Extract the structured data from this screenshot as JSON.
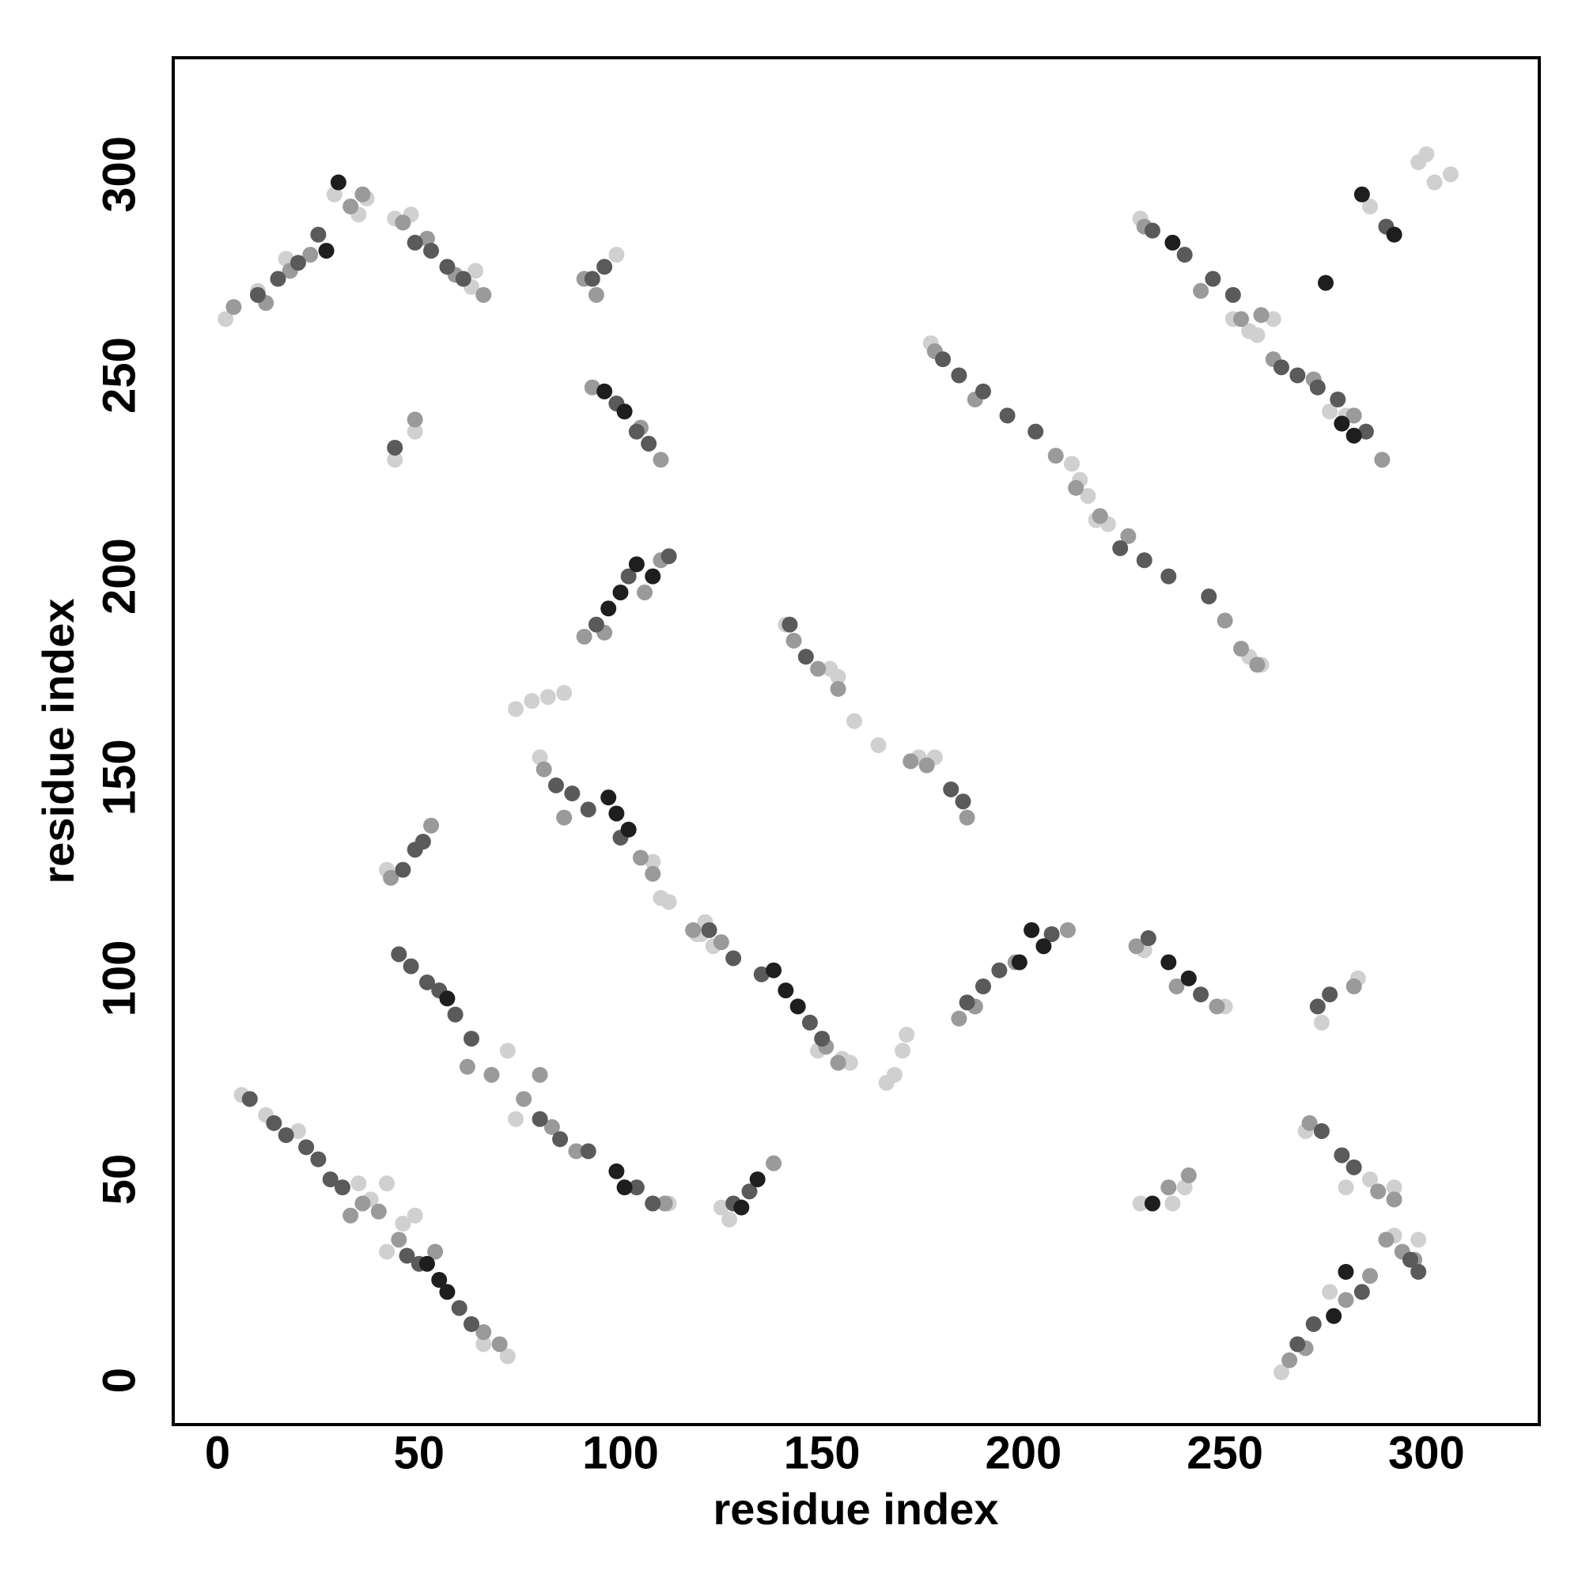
{
  "chart_data": {
    "type": "scatter",
    "xlabel": "residue index",
    "ylabel": "residue index",
    "xlim": [
      -11,
      328
    ],
    "ylim": [
      -11,
      329
    ],
    "xticks": [
      0,
      50,
      100,
      150,
      200,
      250,
      300
    ],
    "yticks": [
      0,
      50,
      100,
      150,
      200,
      250,
      300
    ],
    "series": [
      {
        "color": "#d0d0d0",
        "x": [
          6,
          12,
          20,
          35,
          38,
          42,
          42,
          46,
          49,
          66,
          72,
          2,
          10,
          17,
          29,
          35,
          37,
          44,
          48,
          63,
          64,
          99,
          49,
          44,
          42,
          74,
          78,
          82,
          86,
          80,
          110,
          112,
          119,
          121,
          123,
          155,
          157,
          149,
          127,
          125,
          74,
          72,
          120,
          141,
          152,
          154,
          158,
          164,
          166,
          168,
          170,
          171,
          174,
          178,
          177,
          212,
          214,
          216,
          218,
          221,
          256,
          259,
          229,
          229,
          237,
          240,
          252,
          256,
          258,
          262,
          276,
          280,
          298,
          300,
          302,
          306,
          286,
          230,
          250,
          283,
          274,
          270,
          280,
          286,
          292,
          264,
          276,
          292,
          298,
          112,
          108
        ],
        "values": [
          71,
          66,
          62,
          49,
          45,
          49,
          32,
          39,
          41,
          9,
          6,
          264,
          271,
          279,
          295,
          290,
          294,
          289,
          290,
          272,
          276,
          280,
          236,
          229,
          127,
          167,
          169,
          170,
          171,
          155,
          120,
          119,
          111,
          114,
          108,
          80,
          79,
          82,
          40,
          43,
          65,
          82,
          111,
          188,
          177,
          175,
          164,
          158,
          74,
          76,
          82,
          86,
          155,
          155,
          258,
          228,
          224,
          220,
          214,
          213,
          180,
          178,
          289,
          44,
          44,
          48,
          264,
          261,
          260,
          264,
          241,
          240,
          303,
          305,
          298,
          300,
          292,
          107,
          93,
          100,
          89,
          62,
          48,
          50,
          48,
          2,
          22,
          36,
          35,
          44,
          129
        ]
      },
      {
        "color": "#9a9a9a",
        "x": [
          4,
          12,
          18,
          23,
          33,
          46,
          52,
          59,
          66,
          91,
          94,
          93,
          110,
          105,
          91,
          96,
          106,
          110,
          43,
          53,
          49,
          76,
          80,
          83,
          89,
          111,
          62,
          68,
          45,
          54,
          66,
          70,
          36,
          40,
          33,
          81,
          86,
          105,
          108,
          118,
          125,
          151,
          154,
          143,
          149,
          154,
          172,
          176,
          186,
          178,
          188,
          208,
          213,
          219,
          226,
          250,
          254,
          258,
          184,
          188,
          198,
          211,
          228,
          238,
          248,
          236,
          241,
          230,
          244,
          254,
          259,
          262,
          272,
          282,
          289,
          271,
          288,
          292,
          266,
          270,
          280,
          286,
          290,
          294,
          297,
          282,
          138,
          36
        ],
        "values": [
          267,
          268,
          276,
          280,
          292,
          288,
          284,
          275,
          270,
          274,
          270,
          247,
          229,
          237,
          185,
          186,
          196,
          204,
          125,
          138,
          239,
          70,
          76,
          63,
          57,
          44,
          78,
          76,
          35,
          32,
          12,
          9,
          44,
          42,
          41,
          152,
          140,
          130,
          126,
          112,
          109,
          83,
          79,
          184,
          177,
          172,
          154,
          153,
          140,
          256,
          244,
          230,
          222,
          215,
          210,
          189,
          182,
          178,
          90,
          93,
          104,
          112,
          108,
          98,
          93,
          48,
          51,
          287,
          271,
          264,
          265,
          254,
          249,
          240,
          229,
          64,
          47,
          45,
          5,
          8,
          20,
          26,
          35,
          32,
          30,
          98,
          54,
          295
        ]
      },
      {
        "color": "#5a5a5a",
        "x": [
          8,
          14,
          17,
          22,
          25,
          28,
          31,
          47,
          50,
          60,
          63,
          10,
          15,
          20,
          25,
          49,
          53,
          57,
          61,
          93,
          96,
          99,
          104,
          107,
          94,
          102,
          45,
          48,
          52,
          55,
          59,
          63,
          46,
          49,
          51,
          44,
          84,
          88,
          92,
          100,
          122,
          128,
          135,
          147,
          150,
          80,
          85,
          92,
          104,
          108,
          128,
          132,
          142,
          146,
          180,
          184,
          190,
          196,
          203,
          224,
          230,
          236,
          246,
          186,
          190,
          194,
          207,
          231,
          244,
          232,
          240,
          247,
          252,
          264,
          268,
          273,
          278,
          285,
          290,
          273,
          276,
          274,
          279,
          282,
          268,
          272,
          284,
          296,
          185,
          182,
          298,
          112
        ],
        "values": [
          70,
          64,
          61,
          58,
          55,
          50,
          48,
          31,
          29,
          18,
          14,
          270,
          274,
          278,
          285,
          283,
          281,
          277,
          274,
          274,
          277,
          243,
          236,
          233,
          188,
          200,
          106,
          103,
          99,
          97,
          91,
          85,
          127,
          132,
          134,
          232,
          148,
          146,
          142,
          135,
          112,
          105,
          101,
          89,
          85,
          65,
          60,
          57,
          48,
          44,
          44,
          47,
          188,
          180,
          254,
          250,
          246,
          240,
          236,
          207,
          204,
          200,
          195,
          94,
          98,
          102,
          111,
          110,
          96,
          286,
          280,
          274,
          270,
          252,
          250,
          247,
          244,
          236,
          287,
          93,
          96,
          62,
          56,
          53,
          9,
          14,
          22,
          30,
          144,
          147,
          27,
          205
        ]
      },
      {
        "color": "#1e1e1e",
        "x": [
          27,
          30,
          52,
          55,
          57,
          97,
          99,
          102,
          104,
          97,
          100,
          138,
          141,
          144,
          57,
          99,
          101,
          134,
          130,
          205,
          202,
          199,
          236,
          241,
          280,
          284,
          292,
          277,
          275,
          232,
          279,
          282,
          237,
          96,
          101,
          108
        ],
        "values": [
          281,
          298,
          29,
          25,
          22,
          145,
          141,
          137,
          203,
          192,
          196,
          102,
          97,
          93,
          95,
          52,
          48,
          50,
          43,
          108,
          112,
          104,
          104,
          100,
          27,
          295,
          285,
          16,
          273,
          44,
          238,
          235,
          283,
          246,
          241,
          200
        ]
      }
    ]
  }
}
